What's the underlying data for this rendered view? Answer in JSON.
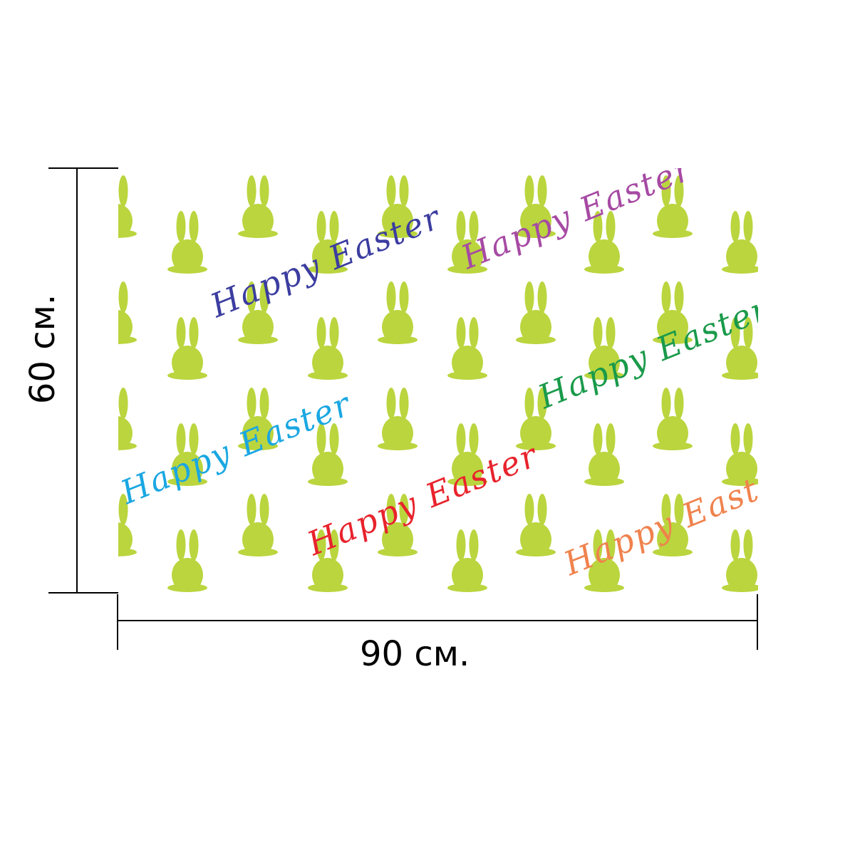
{
  "dimensions": {
    "width_label": "90 см.",
    "height_label": "60 см."
  },
  "pattern": {
    "motif": "bunny-silhouette-icon",
    "motif_color": "#bad53e",
    "background_color": "#ffffff",
    "greetings": [
      {
        "text": "Happy Easter",
        "color": "#3b3da0"
      },
      {
        "text": "Happy Easter",
        "color": "#a64aa3"
      },
      {
        "text": "Happy Easter",
        "color": "#1a9a4a"
      },
      {
        "text": "Happy Easter",
        "color": "#1aa7e2"
      },
      {
        "text": "Happy Easter",
        "color": "#e8232c"
      },
      {
        "text": "Happy Easter",
        "color": "#f0824d"
      }
    ]
  }
}
